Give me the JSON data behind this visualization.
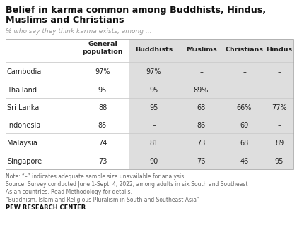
{
  "title_line1": "Belief in karma common among Buddhists, Hindus,",
  "title_line2": "Muslims and Christians",
  "subtitle": "% who say they think karma exists, among ...",
  "col_headers": [
    "General\npopulation",
    "Buddhists",
    "Muslims",
    "Christians",
    "Hindus"
  ],
  "row_labels": [
    "Cambodia",
    "Thailand",
    "Sri Lanka",
    "Indonesia",
    "Malaysia",
    "Singapore"
  ],
  "table_data": [
    [
      "97%",
      "97%",
      "–",
      "–",
      "–"
    ],
    [
      "95",
      "95",
      "89%",
      "––",
      "––"
    ],
    [
      "88",
      "95",
      "68",
      "66%",
      "77%"
    ],
    [
      "85",
      "–",
      "86",
      "69",
      "–"
    ],
    [
      "74",
      "81",
      "73",
      "68",
      "89"
    ],
    [
      "73",
      "90",
      "76",
      "46",
      "95"
    ]
  ],
  "note_lines": [
    "Note: “–” indicates adequate sample size unavailable for analysis.",
    "Source: Survey conducted June 1-Sept. 4, 2022, among adults in six South and Southeast",
    "Asian countries. Read Methodology for details.",
    "“Buddhism, Islam and Religious Pluralism in South and Southeast Asia”",
    "PEW RESEARCH CENTER"
  ],
  "shaded_bg": "#dedede",
  "white_bg": "#ffffff",
  "title_color": "#111111",
  "subtitle_color": "#999999",
  "body_color": "#222222",
  "note_color": "#666666",
  "pew_color": "#111111",
  "divider_color": "#cccccc"
}
